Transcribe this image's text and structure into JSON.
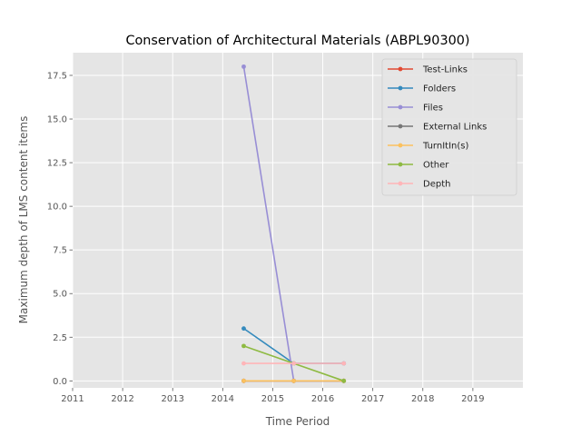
{
  "chart_data": {
    "type": "line",
    "title": "Conservation of Architectural Materials (ABPL90300)",
    "xlabel": "Time Period",
    "ylabel": "Maximum depth of LMS content items",
    "xlim": [
      2011,
      2020
    ],
    "ylim": [
      -0.4,
      18.8
    ],
    "x_ticks": [
      "2011",
      "2012",
      "2013",
      "2014",
      "2015",
      "2016",
      "2017",
      "2018",
      "2019"
    ],
    "y_ticks": [
      "0.0",
      "2.5",
      "5.0",
      "7.5",
      "10.0",
      "12.5",
      "15.0",
      "17.5"
    ],
    "grid": true,
    "legend_position": "top-right",
    "x": [
      2014.42,
      2015.42,
      2016.42
    ],
    "series": [
      {
        "name": "Test-Links",
        "color": "#E24A33",
        "values": [
          0,
          0,
          0
        ]
      },
      {
        "name": "Folders",
        "color": "#348ABD",
        "values": [
          3,
          1,
          1
        ]
      },
      {
        "name": "Files",
        "color": "#988ED5",
        "values": [
          18,
          0,
          0
        ]
      },
      {
        "name": "External Links",
        "color": "#777777",
        "values": [
          0,
          0,
          0
        ]
      },
      {
        "name": "TurnItIn(s)",
        "color": "#FBC15E",
        "values": [
          0,
          0,
          0
        ]
      },
      {
        "name": "Other",
        "color": "#8EBA42",
        "values": [
          2,
          1,
          0
        ]
      },
      {
        "name": "Depth",
        "color": "#FFB5B8",
        "values": [
          1,
          1,
          1
        ]
      }
    ]
  }
}
